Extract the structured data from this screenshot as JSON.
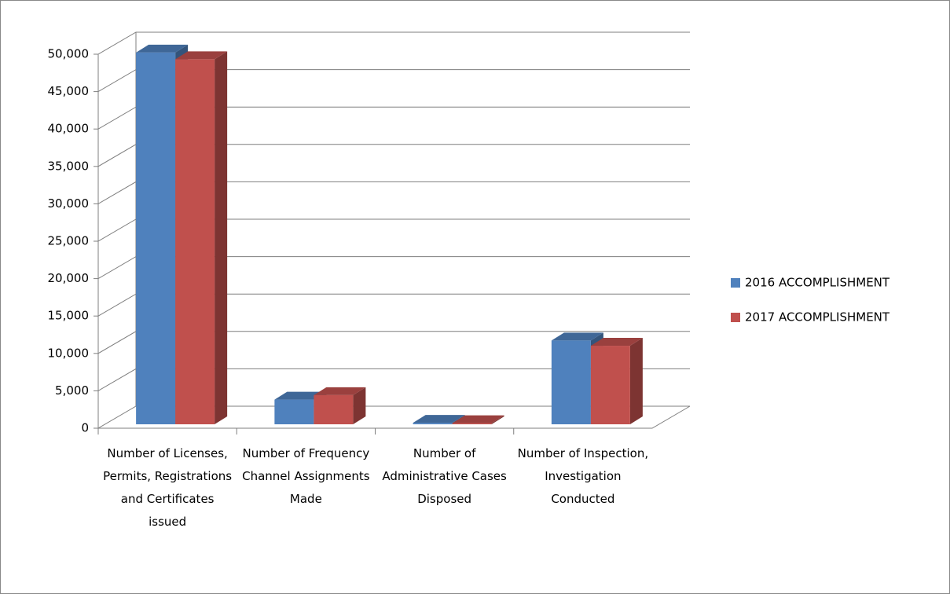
{
  "chart_data": {
    "type": "bar3d",
    "categories": [
      "Number of Licenses, Permits, Registrations and Certificates issued",
      "Number of Frequency Channel Assignments Made",
      "Number of Administrative Cases Disposed",
      "Number of Inspection, Investigation Conducted"
    ],
    "series": [
      {
        "name": "2016 ACCOMPLISHMENT",
        "color": "#4f81bd",
        "values": [
          49700,
          3300,
          200,
          11200
        ]
      },
      {
        "name": "2017 ACCOMPLISHMENT",
        "color": "#c0504d",
        "values": [
          48800,
          3900,
          150,
          10500
        ]
      }
    ],
    "ylim": [
      0,
      50000
    ],
    "yticks": [
      0,
      {
        "value": 5000,
        "label": "5,000"
      },
      {
        "value": 10000,
        "label": "10,000"
      },
      {
        "value": 15000,
        "label": "15,000"
      },
      {
        "value": 20000,
        "label": "20,000"
      },
      {
        "value": 25000,
        "label": "25,000"
      },
      {
        "value": 30000,
        "label": "30,000"
      },
      {
        "value": 35000,
        "label": "35,000"
      },
      {
        "value": 40000,
        "label": "40,000"
      },
      {
        "value": 45000,
        "label": "45,000"
      },
      {
        "value": 50000,
        "label": "50,000"
      }
    ],
    "grid": true,
    "legend": "right"
  }
}
